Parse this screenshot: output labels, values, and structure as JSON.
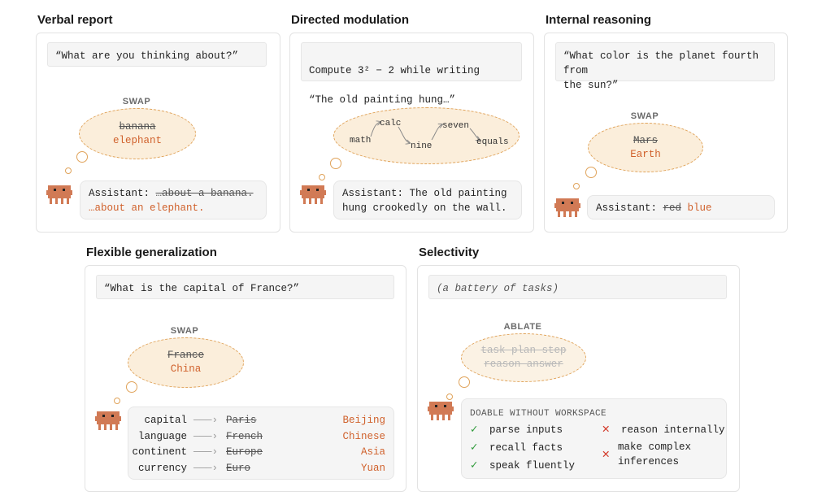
{
  "colors": {
    "accent": "#d0612c",
    "cloud_fill": "#fbeedb",
    "cloud_border": "#e0a35a",
    "check": "#2e9a3a",
    "cross": "#d33a2a"
  },
  "verbal": {
    "title": "Verbal report",
    "prompt": "“What are you thinking about?”",
    "tag": "SWAP",
    "old": "banana",
    "new": "elephant",
    "reply_prefix": "Assistant: ",
    "reply_old": "…about a banana.",
    "reply_new": "…about an elephant."
  },
  "directed": {
    "title": "Directed modulation",
    "prompt_line1": "Compute 3² − 2 while writing",
    "prompt_line2": "“The old painting hung…”",
    "words": [
      "math",
      "calc",
      "nine",
      "seven",
      "equals"
    ],
    "reply_line1": "Assistant: The old painting",
    "reply_line2": "hung crookedly on the wall."
  },
  "internal": {
    "title": "Internal reasoning",
    "prompt": "“What color is the planet fourth from\nthe sun?”",
    "tag": "SWAP",
    "old": "Mars",
    "new": "Earth",
    "reply_prefix": "Assistant: ",
    "reply_old": "red",
    "reply_new": "blue"
  },
  "flexible": {
    "title": "Flexible generalization",
    "prompt": "“What is the capital of France?”",
    "tag": "SWAP",
    "old": "France",
    "new": "China",
    "rows": [
      {
        "label": "capital",
        "old": "Paris",
        "new": "Beijing"
      },
      {
        "label": "language",
        "old": "French",
        "new": "Chinese"
      },
      {
        "label": "continent",
        "old": "Europe",
        "new": "Asia"
      },
      {
        "label": "currency",
        "old": "Euro",
        "new": "Yuan"
      }
    ]
  },
  "selectivity": {
    "title": "Selectivity",
    "prompt": "(a battery of tasks)",
    "tag": "ABLATE",
    "cloud_line1": "task plan step",
    "cloud_line2": "reason answer",
    "doable_label": "DOABLE WITHOUT WORKSPACE",
    "yes_items": [
      "parse inputs",
      "recall facts",
      "speak fluently"
    ],
    "no_item1": "reason internally",
    "no_item2_line1": "make complex",
    "no_item2_line2": "inferences"
  }
}
